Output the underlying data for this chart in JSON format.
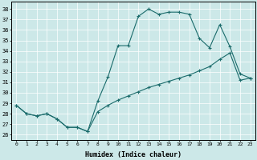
{
  "xlabel": "Humidex (Indice chaleur)",
  "background_color": "#cce8e8",
  "line_color": "#1a6b6b",
  "xlim": [
    -0.5,
    23.5
  ],
  "ylim": [
    25.5,
    38.7
  ],
  "yticks": [
    26,
    27,
    28,
    29,
    30,
    31,
    32,
    33,
    34,
    35,
    36,
    37,
    38
  ],
  "xticks": [
    0,
    1,
    2,
    3,
    4,
    5,
    6,
    7,
    8,
    9,
    10,
    11,
    12,
    13,
    14,
    15,
    16,
    17,
    18,
    19,
    20,
    21,
    22,
    23
  ],
  "series1_x": [
    0,
    1,
    2,
    3,
    4,
    5,
    6,
    7,
    8,
    9,
    10,
    11,
    12,
    13,
    14,
    15,
    16,
    17,
    18,
    19,
    20,
    21,
    22,
    23
  ],
  "series1_y": [
    28.8,
    28.0,
    27.8,
    28.0,
    27.5,
    26.7,
    26.7,
    26.3,
    29.2,
    31.5,
    34.5,
    34.5,
    37.3,
    38.0,
    37.5,
    37.7,
    37.7,
    37.5,
    35.2,
    34.3,
    36.5,
    34.4,
    31.8,
    31.4
  ],
  "series2_x": [
    0,
    1,
    2,
    3,
    4,
    5,
    6,
    7,
    8,
    9,
    10,
    11,
    12,
    13,
    14,
    15,
    16,
    17,
    18,
    19,
    20,
    21,
    22,
    23
  ],
  "series2_y": [
    28.8,
    28.0,
    27.8,
    28.0,
    27.5,
    26.7,
    26.7,
    26.3,
    28.2,
    28.8,
    29.3,
    29.7,
    30.1,
    30.5,
    30.8,
    31.1,
    31.4,
    31.7,
    32.1,
    32.5,
    33.2,
    33.8,
    31.2,
    31.4
  ]
}
